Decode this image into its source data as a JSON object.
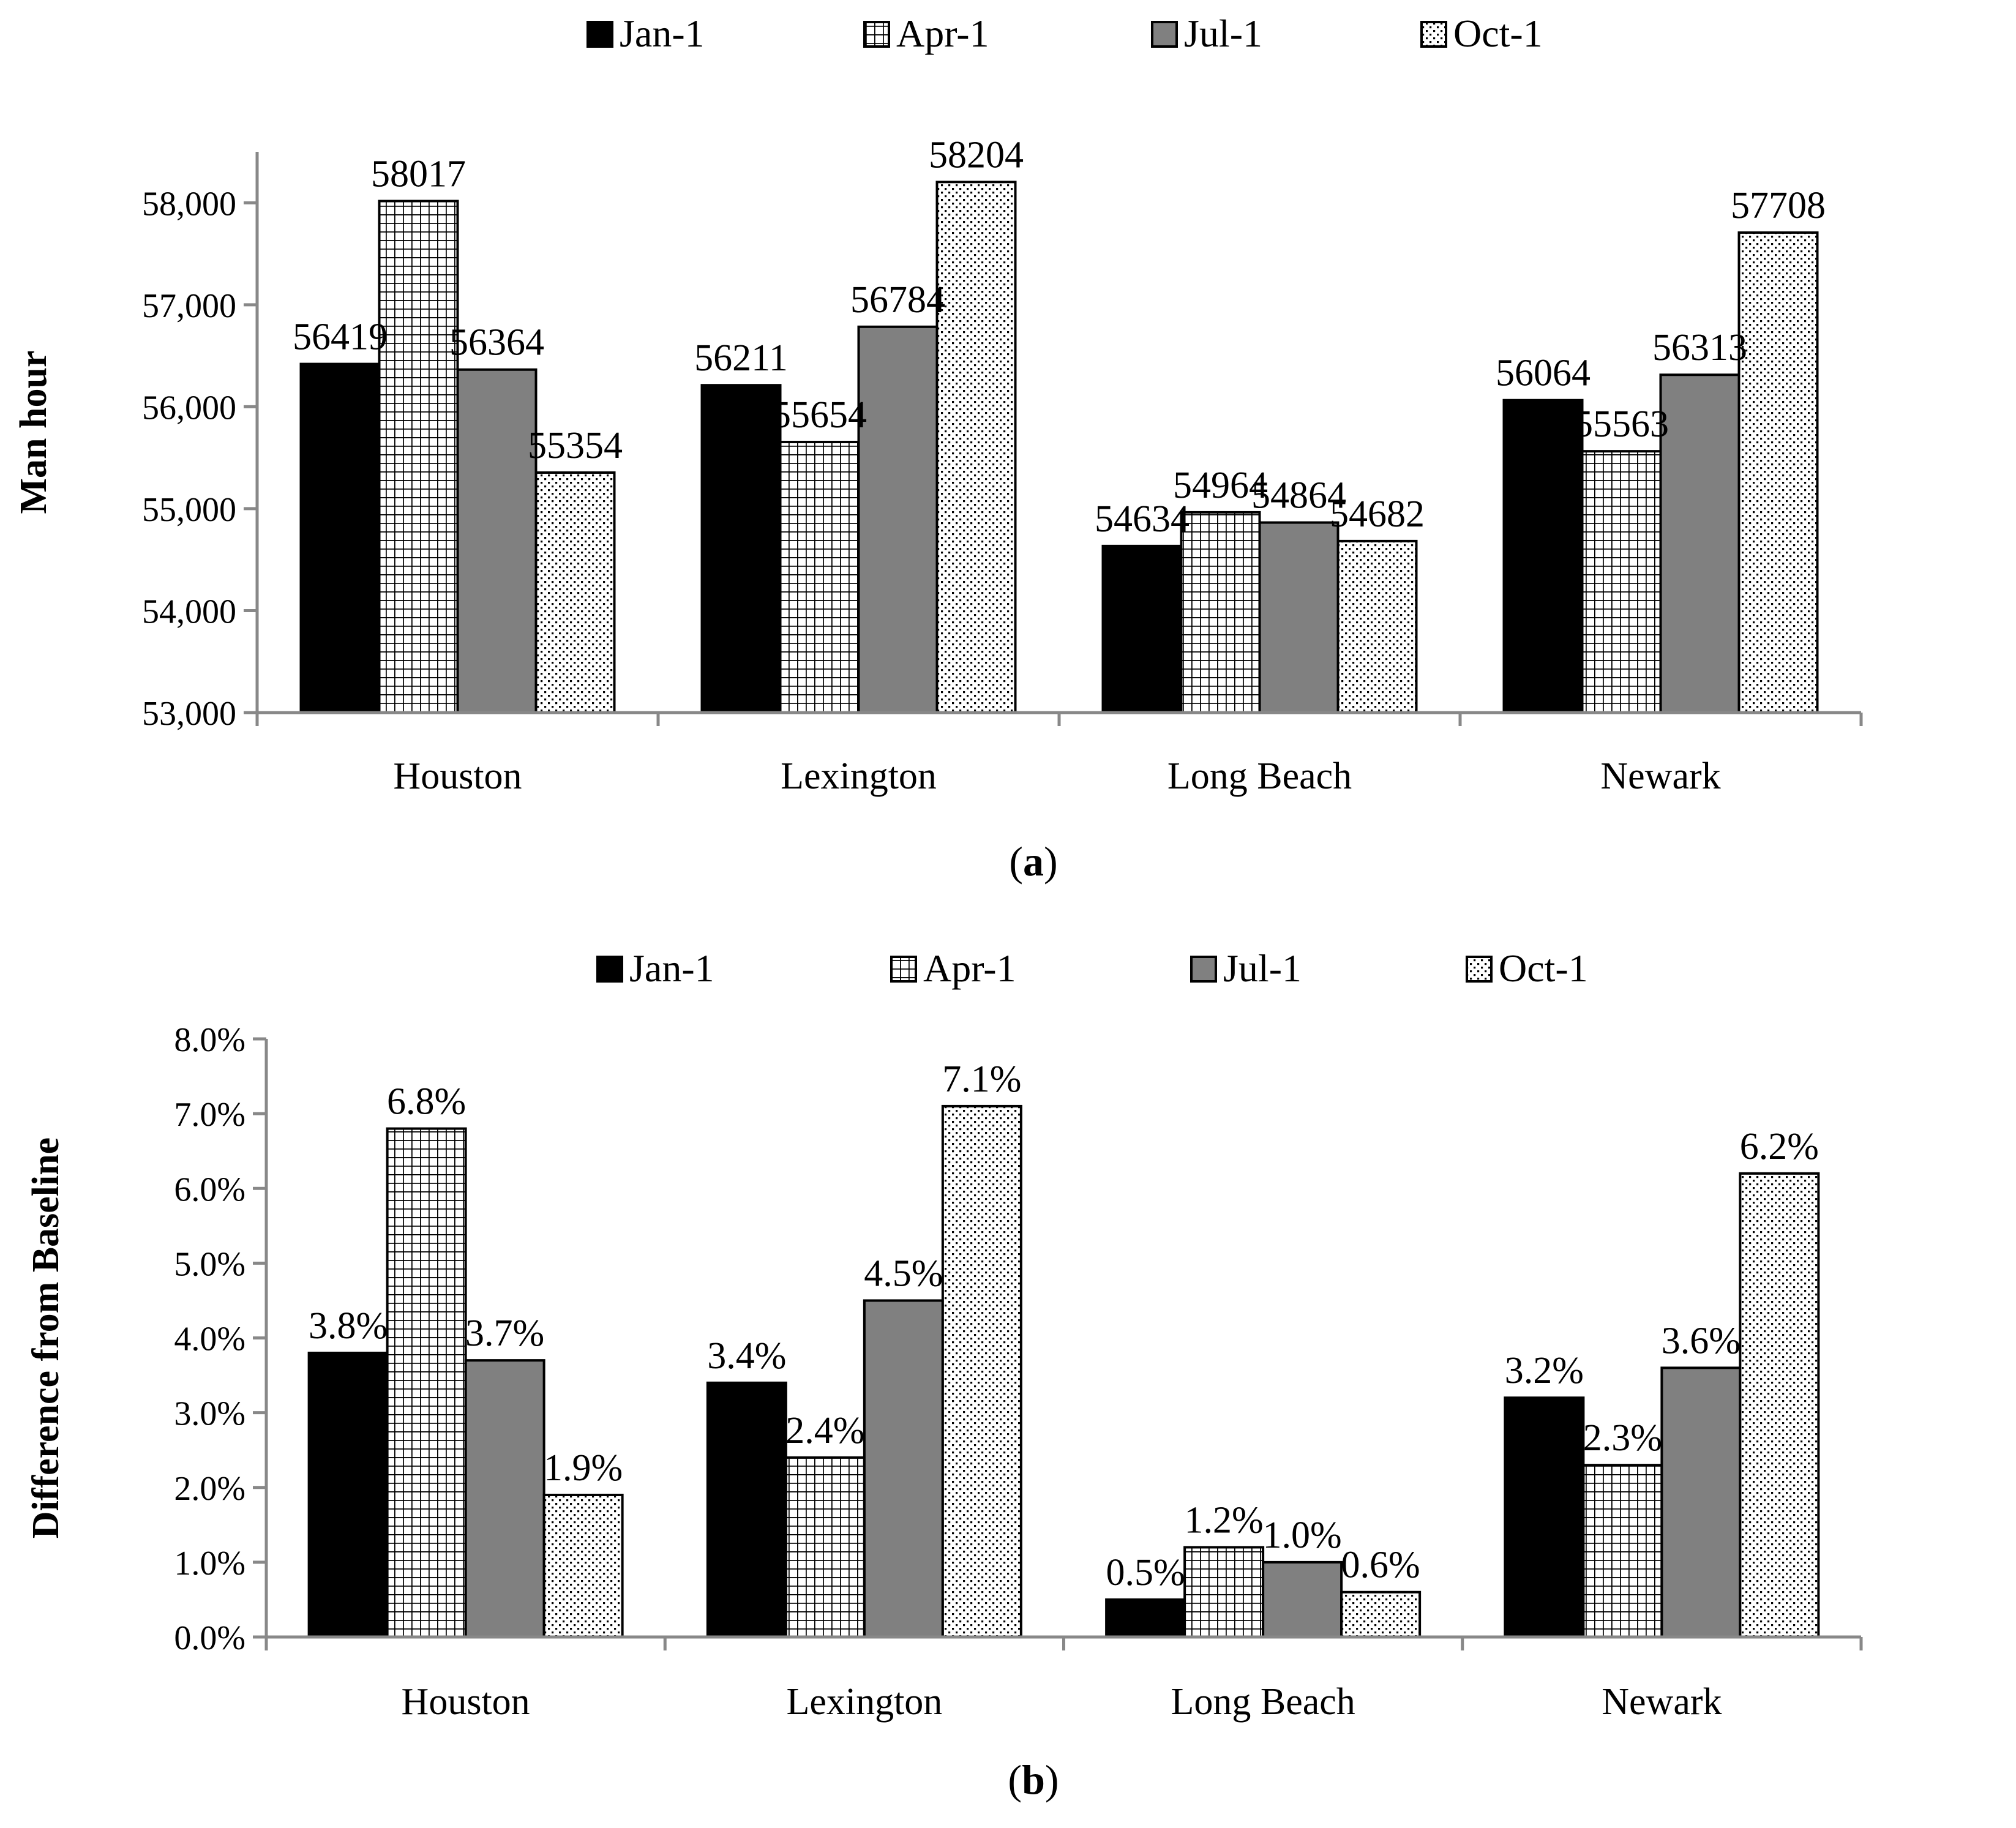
{
  "chart_data": [
    {
      "type": "bar",
      "panel": "a",
      "categories": [
        "Houston",
        "Lexington",
        "Long Beach",
        "Newark"
      ],
      "series": [
        {
          "name": "Jan-1",
          "pattern": "solid-black",
          "values": [
            56419,
            56211,
            54634,
            56064
          ]
        },
        {
          "name": "Apr-1",
          "pattern": "grid",
          "values": [
            58017,
            55654,
            54964,
            55563
          ]
        },
        {
          "name": "Jul-1",
          "pattern": "solid-gray",
          "values": [
            56364,
            56784,
            54864,
            56313
          ]
        },
        {
          "name": "Oct-1",
          "pattern": "dots",
          "values": [
            55354,
            58204,
            54682,
            57708
          ]
        }
      ],
      "data_labels": [
        [
          "56419",
          "56211",
          "54634",
          "56064"
        ],
        [
          "58017",
          "55654",
          "54964",
          "55563"
        ],
        [
          "56364",
          "56784",
          "54864",
          "56313"
        ],
        [
          "55354",
          "58204",
          "54682",
          "57708"
        ]
      ],
      "ylabel": "Man hour",
      "xlabel": "",
      "ylim": [
        53000,
        58500
      ],
      "yticks": [
        53000,
        54000,
        55000,
        56000,
        57000,
        58000
      ],
      "ytick_labels": [
        "53,000",
        "54,000",
        "55,000",
        "56,000",
        "57,000",
        "58,000"
      ],
      "legend": "top",
      "caption_letter": "a"
    },
    {
      "type": "bar",
      "panel": "b",
      "categories": [
        "Houston",
        "Lexington",
        "Long Beach",
        "Newark"
      ],
      "series": [
        {
          "name": "Jan-1",
          "pattern": "solid-black",
          "values": [
            3.8,
            3.4,
            0.5,
            3.2
          ]
        },
        {
          "name": "Apr-1",
          "pattern": "grid",
          "values": [
            6.8,
            2.4,
            1.2,
            2.3
          ]
        },
        {
          "name": "Jul-1",
          "pattern": "solid-gray",
          "values": [
            3.7,
            4.5,
            1.0,
            3.6
          ]
        },
        {
          "name": "Oct-1",
          "pattern": "dots",
          "values": [
            1.9,
            7.1,
            0.6,
            6.2
          ]
        }
      ],
      "data_labels": [
        [
          "3.8%",
          "3.4%",
          "0.5%",
          "3.2%"
        ],
        [
          "6.8%",
          "2.4%",
          "1.2%",
          "2.3%"
        ],
        [
          "3.7%",
          "4.5%",
          "1.0%",
          "3.6%"
        ],
        [
          "1.9%",
          "7.1%",
          "0.6%",
          "6.2%"
        ]
      ],
      "ylabel": "Difference from Baseline",
      "xlabel": "",
      "ylim": [
        0,
        8
      ],
      "yticks": [
        0,
        1,
        2,
        3,
        4,
        5,
        6,
        7,
        8
      ],
      "ytick_labels": [
        "0.0%",
        "1.0%",
        "2.0%",
        "3.0%",
        "4.0%",
        "5.0%",
        "6.0%",
        "7.0%",
        "8.0%"
      ],
      "legend": "top",
      "caption_letter": "b"
    }
  ],
  "captions": {
    "open": "(",
    "close": ")"
  }
}
